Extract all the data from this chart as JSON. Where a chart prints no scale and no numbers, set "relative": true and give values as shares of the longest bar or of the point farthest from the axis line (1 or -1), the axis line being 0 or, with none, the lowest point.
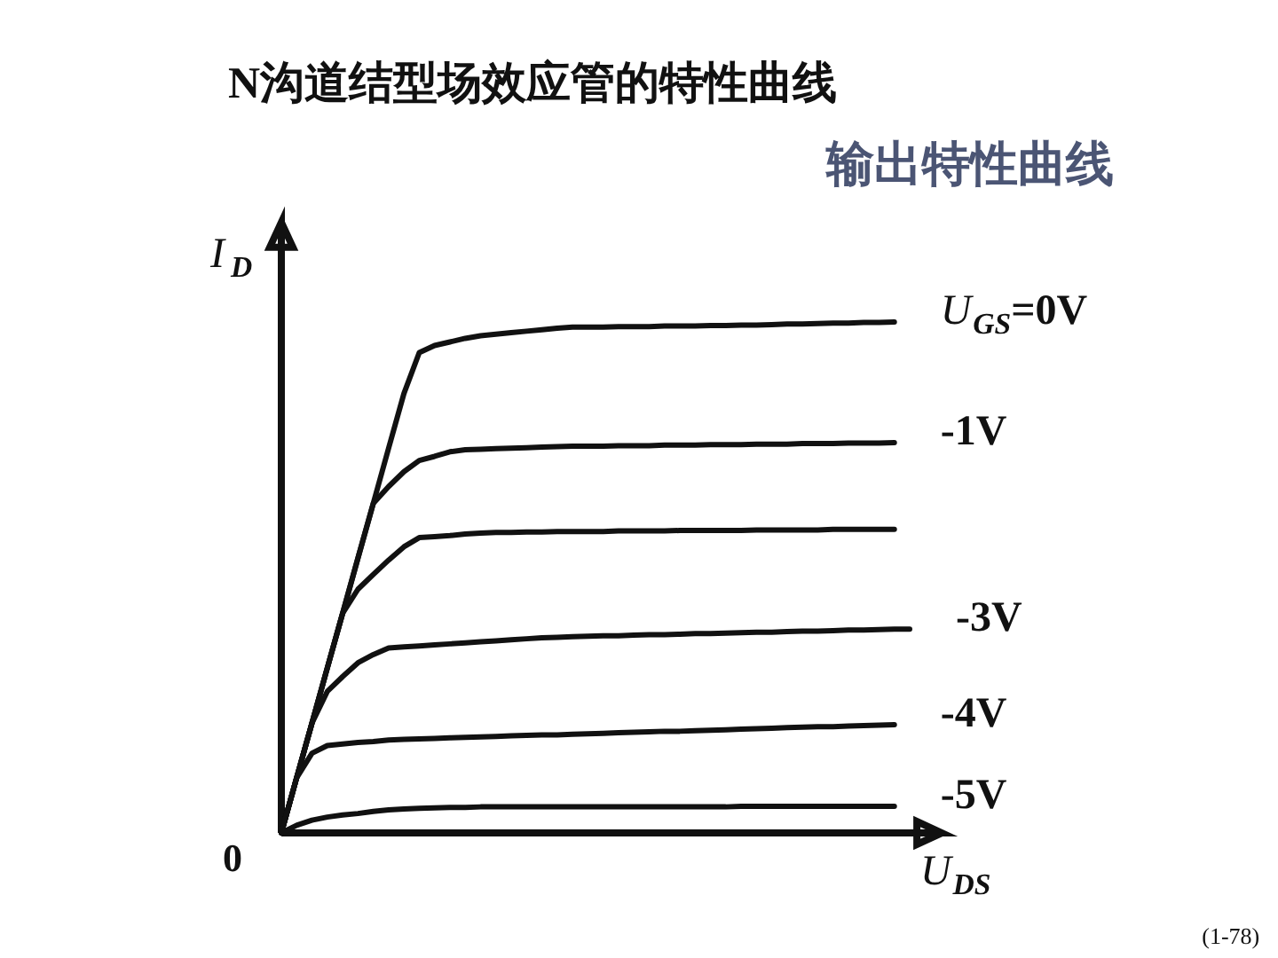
{
  "chart_data": {
    "type": "line",
    "title": "N沟道结型场效应管的特性曲线",
    "subtitle": "输出特性曲线",
    "xlabel": "U$_{DS}$",
    "ylabel": "I$_{D}$",
    "relative": true,
    "grid": false,
    "categories": [
      null,
      null,
      null,
      null,
      null,
      null,
      null,
      null,
      null,
      null,
      null,
      null,
      null,
      null,
      null,
      null,
      null,
      null,
      null,
      null,
      null,
      null,
      null,
      null,
      null,
      null,
      null,
      null,
      null,
      null,
      null,
      null,
      null,
      null,
      null,
      null,
      null,
      null,
      null,
      null,
      null,
      null
    ],
    "series": [
      {
        "name": "U$_{GS}$=0V",
        "color": "#111111",
        "values": [
          0,
          0.108,
          0.215,
          0.323,
          0.43,
          0.538,
          0.645,
          0.753,
          0.86,
          0.94,
          0.954,
          0.961,
          0.968,
          0.973,
          0.976,
          0.979,
          0.982,
          0.985,
          0.988,
          0.99,
          0.99,
          0.99,
          0.991,
          0.991,
          0.991,
          0.992,
          0.992,
          0.992,
          0.993,
          0.993,
          0.994,
          0.994,
          0.995,
          0.996,
          0.996,
          0.997,
          0.998,
          0.998,
          0.999,
          0.999,
          1.0,
          null
        ]
      },
      {
        "name": "-1V",
        "color": "#111111",
        "values": [
          0,
          0.108,
          0.215,
          0.323,
          0.43,
          0.538,
          0.645,
          0.678,
          0.707,
          0.729,
          0.737,
          0.746,
          0.75,
          0.751,
          0.752,
          0.753,
          0.754,
          0.755,
          0.756,
          0.757,
          0.757,
          0.757,
          0.758,
          0.758,
          0.758,
          0.759,
          0.759,
          0.759,
          0.76,
          0.76,
          0.76,
          0.761,
          0.761,
          0.761,
          0.762,
          0.762,
          0.762,
          0.763,
          0.763,
          0.763,
          0.764,
          null
        ]
      },
      {
        "name": null,
        "color": "#111111",
        "values": [
          0,
          0.108,
          0.215,
          0.323,
          0.43,
          0.477,
          0.506,
          0.534,
          0.56,
          0.578,
          0.58,
          0.582,
          0.585,
          0.587,
          0.588,
          0.588,
          0.589,
          0.589,
          0.59,
          0.59,
          0.59,
          0.59,
          0.591,
          0.591,
          0.591,
          0.591,
          0.592,
          0.592,
          0.592,
          0.592,
          0.592,
          0.593,
          0.593,
          0.593,
          0.593,
          0.593,
          0.594,
          0.594,
          0.594,
          0.594,
          0.594,
          null
        ]
      },
      {
        "name": "-3V",
        "color": "#111111",
        "values": [
          0,
          0.108,
          0.215,
          0.277,
          0.306,
          0.333,
          0.349,
          0.362,
          0.364,
          0.366,
          0.368,
          0.37,
          0.372,
          0.374,
          0.376,
          0.378,
          0.38,
          0.382,
          0.383,
          0.384,
          0.385,
          0.386,
          0.386,
          0.387,
          0.388,
          0.388,
          0.389,
          0.39,
          0.39,
          0.391,
          0.392,
          0.393,
          0.393,
          0.394,
          0.395,
          0.395,
          0.396,
          0.397,
          0.397,
          0.398,
          0.399,
          0.399
        ]
      },
      {
        "name": "-4V",
        "color": "#111111",
        "values": [
          0,
          0.108,
          0.156,
          0.171,
          0.174,
          0.177,
          0.179,
          0.182,
          0.183,
          0.184,
          0.185,
          0.186,
          0.187,
          0.188,
          0.189,
          0.19,
          0.191,
          0.192,
          0.192,
          0.193,
          0.194,
          0.195,
          0.196,
          0.197,
          0.198,
          0.199,
          0.199,
          0.2,
          0.201,
          0.202,
          0.203,
          0.204,
          0.205,
          0.206,
          0.207,
          0.208,
          0.208,
          0.209,
          0.21,
          0.211,
          0.212,
          null
        ]
      },
      {
        "name": "-5V",
        "color": "#111111",
        "values": [
          0,
          0.015,
          0.025,
          0.031,
          0.035,
          0.038,
          0.042,
          0.045,
          0.047,
          0.048,
          0.049,
          0.05,
          0.05,
          0.051,
          0.051,
          0.051,
          0.051,
          0.051,
          0.051,
          0.051,
          0.051,
          0.051,
          0.051,
          0.051,
          0.051,
          0.051,
          0.051,
          0.051,
          0.051,
          0.051,
          0.052,
          0.052,
          0.052,
          0.052,
          0.052,
          0.052,
          0.052,
          0.052,
          0.052,
          0.052,
          0.052,
          null
        ]
      }
    ],
    "annotations": [
      "0",
      "(1-78)"
    ]
  }
}
